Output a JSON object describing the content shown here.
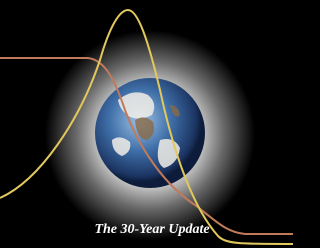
{
  "caption": "The 30-Year Update"
}
